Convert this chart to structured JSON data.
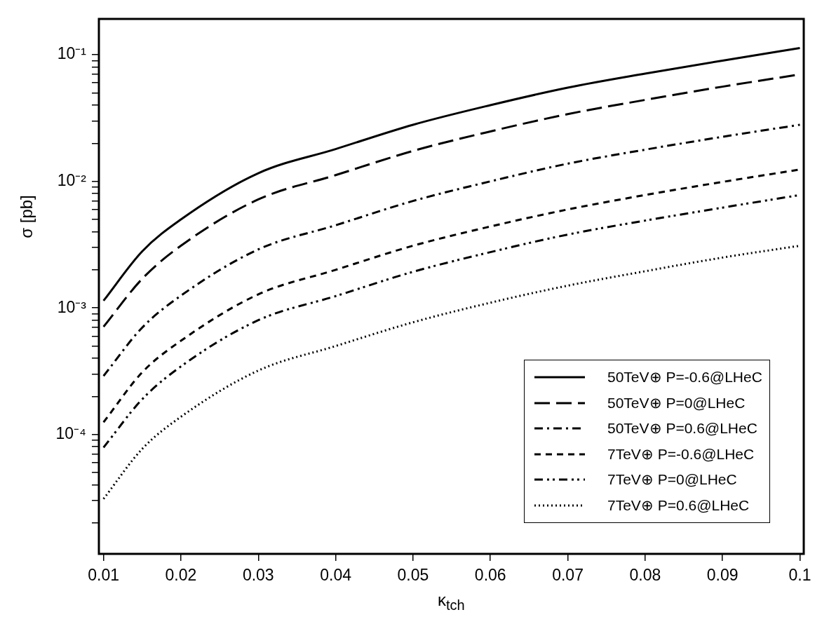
{
  "chart_data": {
    "type": "line",
    "xlabel": "κ$_{tch}$",
    "ylabel": "σ [pb]",
    "x": [
      0.01,
      0.015,
      0.02,
      0.03,
      0.04,
      0.05,
      0.06,
      0.07,
      0.08,
      0.09,
      0.1
    ],
    "series": [
      {
        "name": "50TeV⊕ P=-0.6@LHeC",
        "color": "#000000",
        "line_style": "solid",
        "values": [
          0.00114,
          0.0028,
          0.005,
          0.0116,
          0.018,
          0.028,
          0.04,
          0.055,
          0.071,
          0.09,
          0.113
        ]
      },
      {
        "name": "50TeV⊕ P=0@LHeC",
        "color": "#000000",
        "line_style": "longdash",
        "values": [
          0.00071,
          0.0017,
          0.0031,
          0.0072,
          0.0112,
          0.0174,
          0.0248,
          0.034,
          0.044,
          0.056,
          0.07
        ]
      },
      {
        "name": "50TeV⊕ P=0.6@LHeC",
        "color": "#000000",
        "line_style": "dashdot",
        "values": [
          0.00029,
          0.0007,
          0.00125,
          0.0029,
          0.0045,
          0.007,
          0.01,
          0.0138,
          0.0178,
          0.0225,
          0.028
        ]
      },
      {
        "name": "7TeV⊕ P=-0.6@LHeC",
        "color": "#000000",
        "line_style": "dashed",
        "values": [
          0.000125,
          0.00031,
          0.00055,
          0.00128,
          0.002,
          0.0031,
          0.0044,
          0.006,
          0.0078,
          0.0099,
          0.0124
        ]
      },
      {
        "name": "7TeV⊕ P=0@LHeC",
        "color": "#000000",
        "line_style": "dashdotdot",
        "values": [
          7.9e-05,
          0.00019,
          0.000345,
          0.0008,
          0.00124,
          0.00193,
          0.00276,
          0.0038,
          0.0049,
          0.0062,
          0.0078
        ]
      },
      {
        "name": "7TeV⊕ P=0.6@LHeC",
        "color": "#000000",
        "line_style": "dotted",
        "values": [
          3.1e-05,
          7.7e-05,
          0.000138,
          0.00032,
          0.0005,
          0.00077,
          0.0011,
          0.0015,
          0.00195,
          0.0025,
          0.0031
        ]
      }
    ],
    "log": "y",
    "xlim": [
      0.0094,
      0.1005
    ],
    "xticks": [
      0.01,
      0.02,
      0.03,
      0.04,
      0.05,
      0.06,
      0.07,
      0.08,
      0.09,
      0.1
    ],
    "ylim": [
      1.14e-05,
      0.192
    ],
    "yticks": [
      {
        "value": 2e-05,
        "label": null
      },
      {
        "value": 3e-05,
        "label": null
      },
      {
        "value": 4e-05,
        "label": null
      },
      {
        "value": 5e-05,
        "label": null
      },
      {
        "value": 6e-05,
        "label": null
      },
      {
        "value": 7e-05,
        "label": null
      },
      {
        "value": 8e-05,
        "label": null
      },
      {
        "value": 9e-05,
        "label": null
      },
      {
        "value": 0.0001,
        "label": "10⁻⁴"
      },
      {
        "value": 0.0002,
        "label": null
      },
      {
        "value": 0.0003,
        "label": null
      },
      {
        "value": 0.0004,
        "label": null
      },
      {
        "value": 0.0005,
        "label": null
      },
      {
        "value": 0.0006,
        "label": null
      },
      {
        "value": 0.0007,
        "label": null
      },
      {
        "value": 0.0008,
        "label": null
      },
      {
        "value": 0.0009,
        "label": null
      },
      {
        "value": 0.001,
        "label": "10⁻³"
      },
      {
        "value": 0.002,
        "label": null
      },
      {
        "value": 0.003,
        "label": null
      },
      {
        "value": 0.004,
        "label": null
      },
      {
        "value": 0.005,
        "label": null
      },
      {
        "value": 0.006,
        "label": null
      },
      {
        "value": 0.007,
        "label": null
      },
      {
        "value": 0.008,
        "label": null
      },
      {
        "value": 0.009,
        "label": null
      },
      {
        "value": 0.01,
        "label": "10⁻²"
      },
      {
        "value": 0.02,
        "label": null
      },
      {
        "value": 0.03,
        "label": null
      },
      {
        "value": 0.04,
        "label": null
      },
      {
        "value": 0.05,
        "label": null
      },
      {
        "value": 0.06,
        "label": null
      },
      {
        "value": 0.07,
        "label": null
      },
      {
        "value": 0.08,
        "label": null
      },
      {
        "value": 0.09,
        "label": null
      },
      {
        "value": 0.1,
        "label": "10⁻¹"
      }
    ],
    "grid": false,
    "legend": "bottom right",
    "marker": "none"
  }
}
